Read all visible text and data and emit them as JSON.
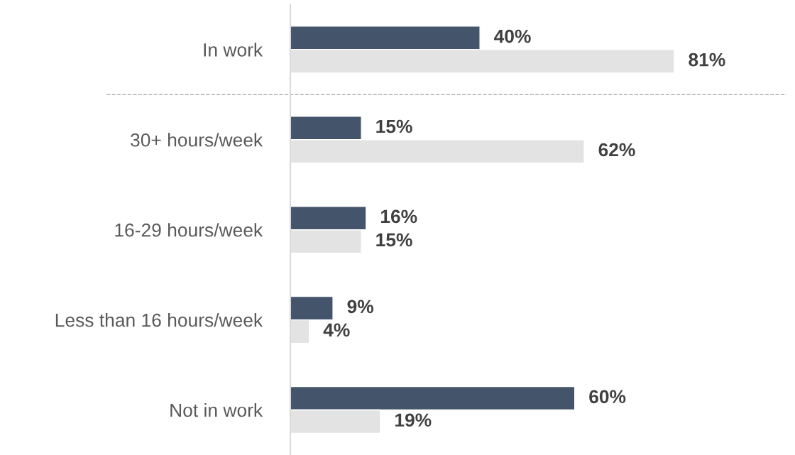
{
  "chart_data": {
    "type": "bar",
    "orientation": "horizontal",
    "categories": [
      "In work",
      "30+ hours/week",
      "16-29 hours/week",
      "Less than 16 hours/week",
      "Not in work"
    ],
    "series": [
      {
        "color": "#44546a",
        "values": [
          40,
          15,
          16,
          9,
          60
        ],
        "value_labels": [
          "40%",
          "15%",
          "16%",
          "9%",
          "60%"
        ]
      },
      {
        "color": "#e3e3e3",
        "values": [
          81,
          62,
          15,
          4,
          19
        ],
        "value_labels": [
          "81%",
          "62%",
          "15%",
          "4%",
          "19%"
        ]
      }
    ],
    "tick_labels": "y",
    "grid": false,
    "legend": false
  }
}
